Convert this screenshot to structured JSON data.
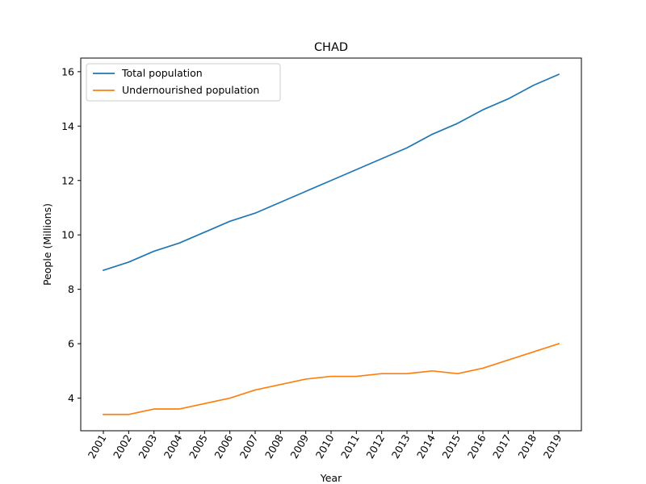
{
  "chart_data": {
    "type": "line",
    "title": "CHAD",
    "xlabel": "Year",
    "ylabel": "People (Millions)",
    "x": [
      "2001",
      "2002",
      "2003",
      "2004",
      "2005",
      "2006",
      "2007",
      "2008",
      "2009",
      "2010",
      "2011",
      "2012",
      "2013",
      "2014",
      "2015",
      "2016",
      "2017",
      "2018",
      "2019"
    ],
    "series": [
      {
        "name": "Total population",
        "color": "#1f77b4",
        "values": [
          8.7,
          9.0,
          9.4,
          9.7,
          10.1,
          10.5,
          10.8,
          11.2,
          11.6,
          12.0,
          12.4,
          12.8,
          13.2,
          13.7,
          14.1,
          14.6,
          15.0,
          15.5,
          15.9
        ]
      },
      {
        "name": "Undernourished population",
        "color": "#ff7f0e",
        "values": [
          3.4,
          3.4,
          3.6,
          3.6,
          3.8,
          4.0,
          4.3,
          4.5,
          4.7,
          4.8,
          4.8,
          4.9,
          4.9,
          5.0,
          4.9,
          5.1,
          5.4,
          5.7,
          6.0
        ]
      }
    ],
    "yticks": [
      4,
      6,
      8,
      10,
      12,
      14,
      16
    ],
    "ylim": [
      2.8,
      16.5
    ],
    "grid": false,
    "legend_position": "top-left"
  }
}
